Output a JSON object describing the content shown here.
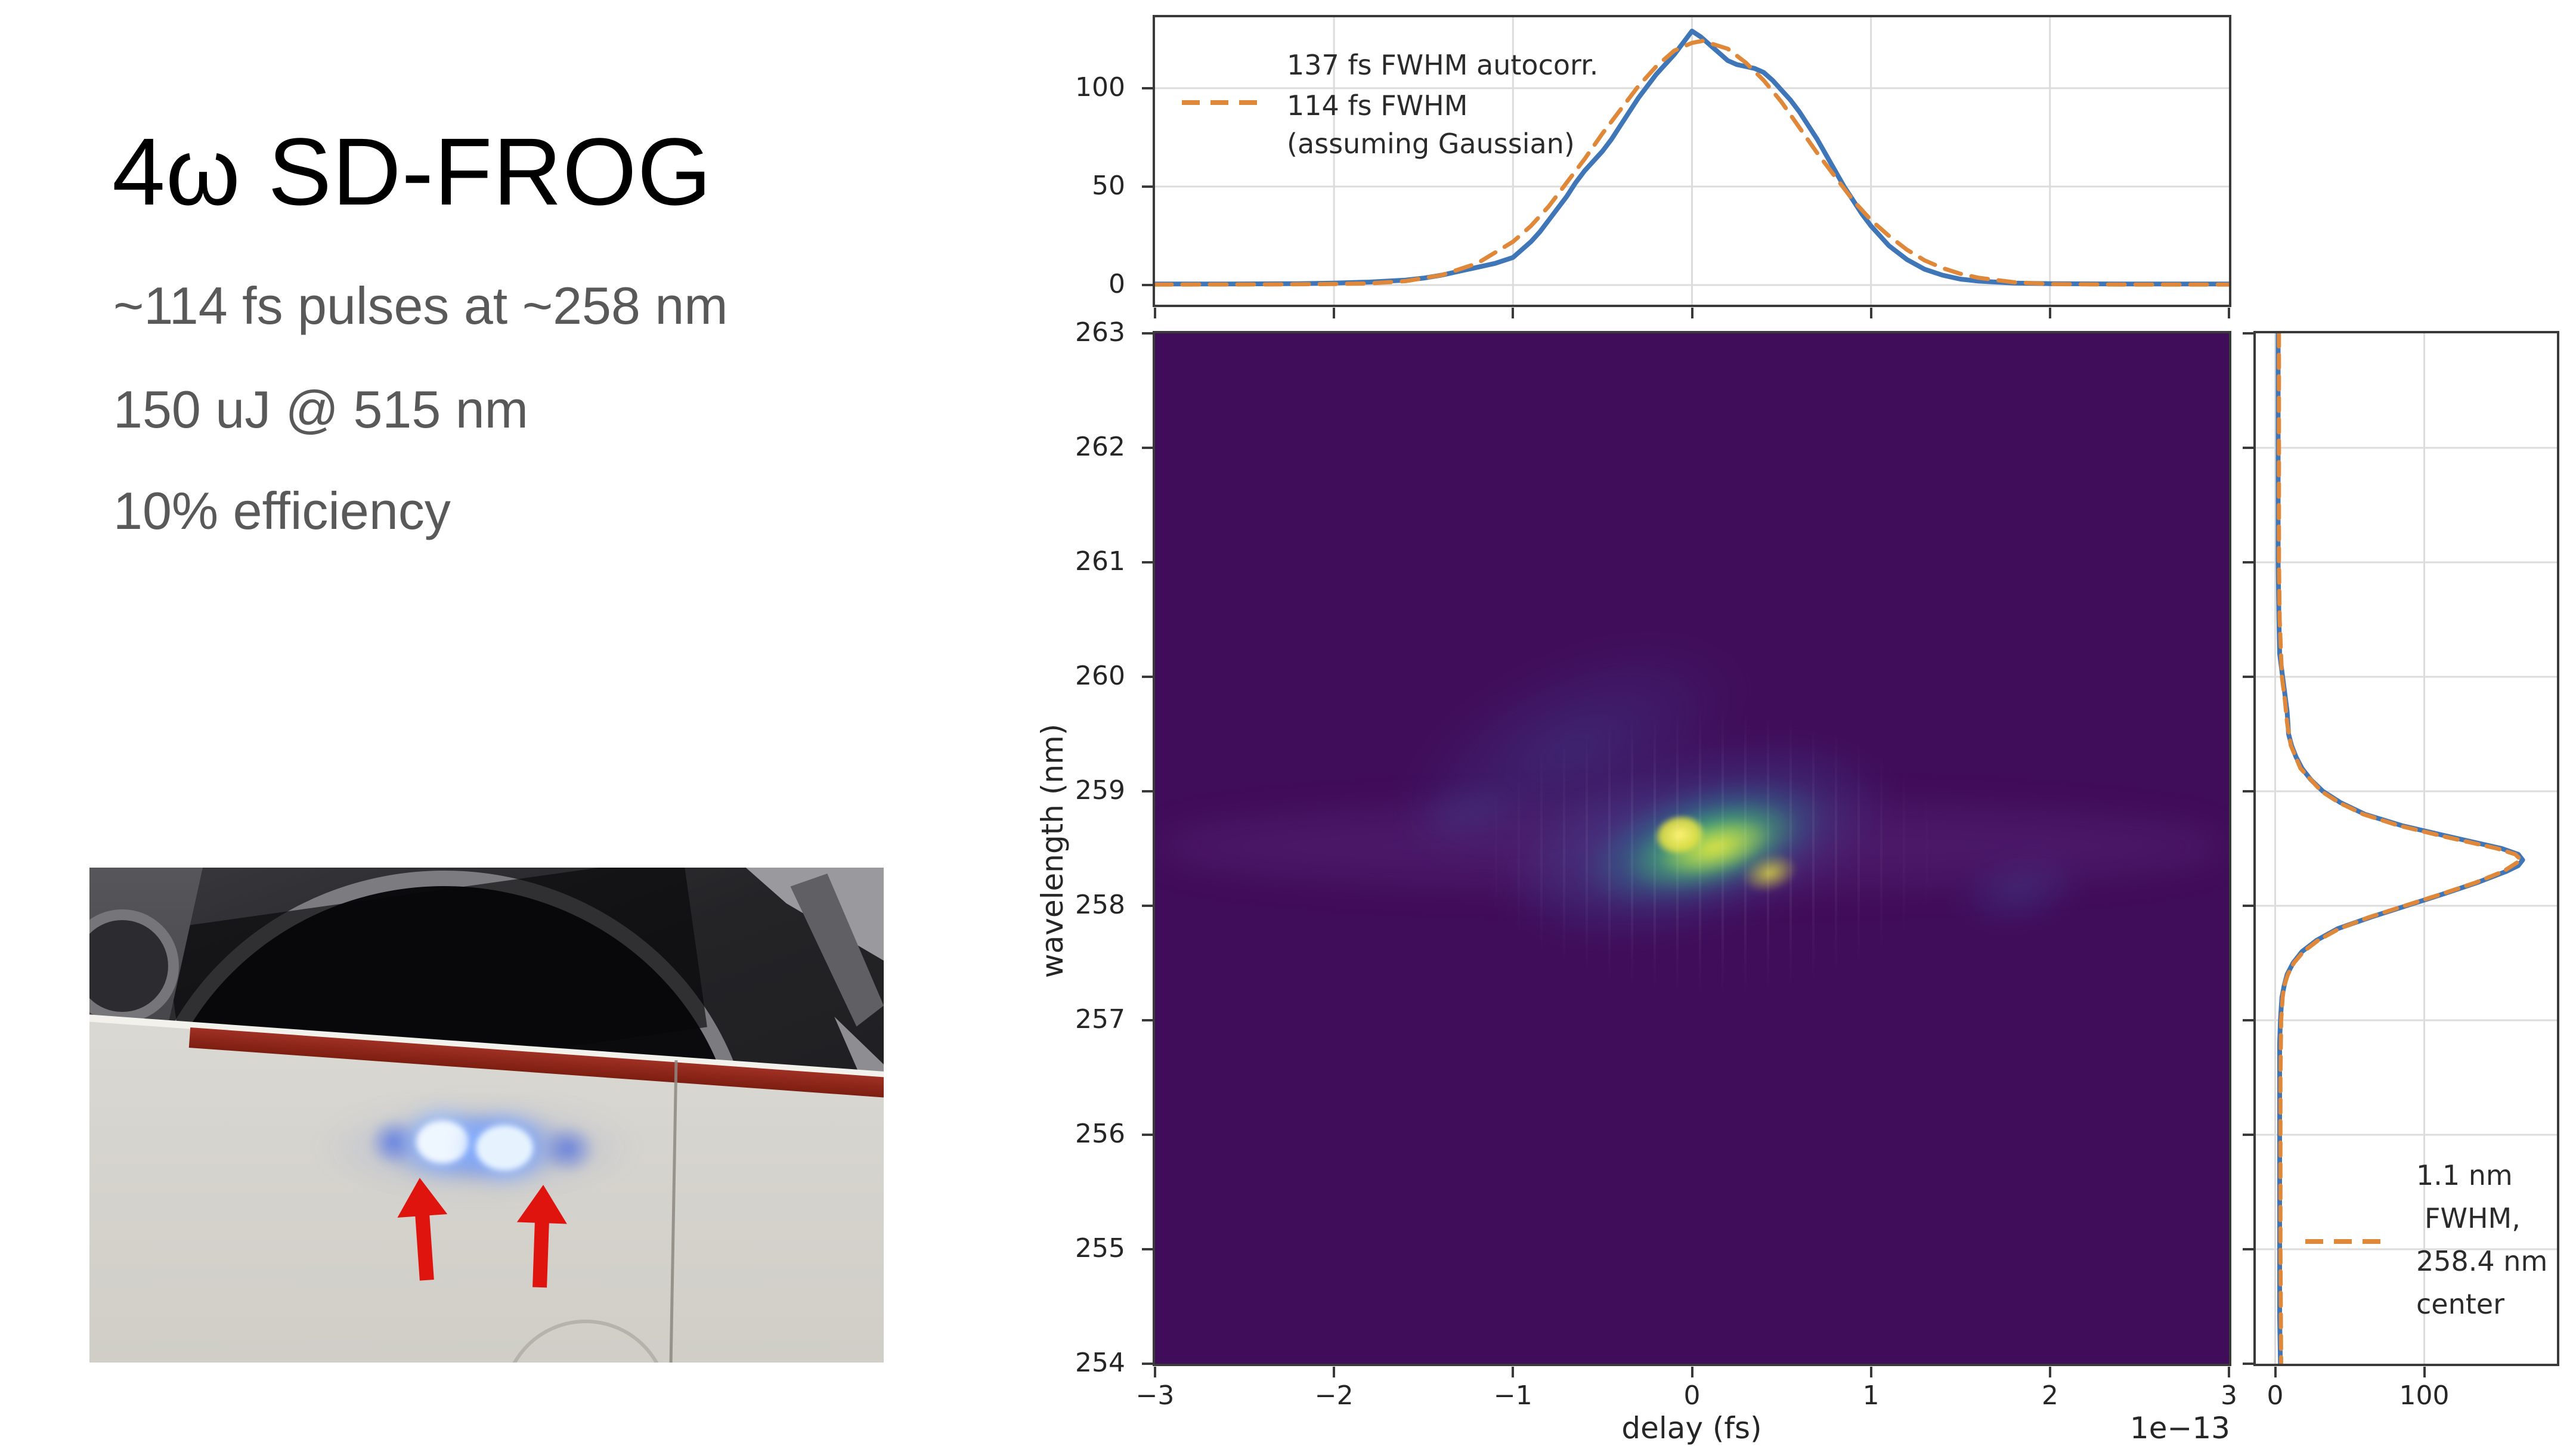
{
  "slide": {
    "title": "4ω SD-FROG",
    "bullets": [
      "~114 fs pulses at ~258 nm",
      "150 uJ @ 515 nm",
      "10% efficiency"
    ],
    "title_color": "#000000",
    "text_color": "#595959"
  },
  "photo": {
    "arrow_color": "#e0140e",
    "glow_color": "#2a5ce6",
    "card_color": "#d6d4ce",
    "red_strip_color": "#8a2418"
  },
  "chart_data": [
    {
      "type": "line",
      "name": "autocorrelation-top-panel",
      "xlim": [
        -3,
        3
      ],
      "ylim": [
        -10,
        136
      ],
      "x_ticks": [
        -3,
        -2,
        -1,
        0,
        1,
        2,
        3
      ],
      "y_ticks": [
        0,
        50,
        100
      ],
      "grid": true,
      "legend": {
        "position": "upper left",
        "entries": [
          {
            "lines": [
              "137 fs FWHM autocorr."
            ],
            "handle": "none",
            "color": "#3f76b8"
          },
          {
            "lines": [
              "114 fs FWHM",
              "(assuming Gaussian)"
            ],
            "handle": "dashed",
            "color": "#e0883a"
          }
        ]
      },
      "fwhm_autocorr_fs": 137,
      "fwhm_pulse_fs": 114,
      "series": [
        {
          "name": "measured autocorrelation",
          "color": "#3f76b8",
          "style": "solid",
          "points": [
            [
              -3,
              0.5
            ],
            [
              -2.6,
              0.5
            ],
            [
              -2.2,
              0.7
            ],
            [
              -2,
              1
            ],
            [
              -1.8,
              1.5
            ],
            [
              -1.6,
              2.5
            ],
            [
              -1.5,
              3.5
            ],
            [
              -1.4,
              5
            ],
            [
              -1.3,
              7
            ],
            [
              -1.2,
              9
            ],
            [
              -1.1,
              11
            ],
            [
              -1,
              14
            ],
            [
              -0.95,
              18
            ],
            [
              -0.9,
              22
            ],
            [
              -0.85,
              27
            ],
            [
              -0.8,
              33
            ],
            [
              -0.75,
              39
            ],
            [
              -0.7,
              45
            ],
            [
              -0.65,
              52
            ],
            [
              -0.6,
              58
            ],
            [
              -0.55,
              63
            ],
            [
              -0.5,
              68
            ],
            [
              -0.45,
              74
            ],
            [
              -0.4,
              81
            ],
            [
              -0.35,
              88
            ],
            [
              -0.3,
              95
            ],
            [
              -0.25,
              101
            ],
            [
              -0.2,
              107
            ],
            [
              -0.15,
              112
            ],
            [
              -0.1,
              117
            ],
            [
              -0.05,
              123
            ],
            [
              0,
              129
            ],
            [
              0.05,
              126
            ],
            [
              0.1,
              122
            ],
            [
              0.15,
              118
            ],
            [
              0.2,
              114
            ],
            [
              0.25,
              112
            ],
            [
              0.3,
              111
            ],
            [
              0.35,
              110
            ],
            [
              0.4,
              108
            ],
            [
              0.45,
              104
            ],
            [
              0.5,
              99
            ],
            [
              0.55,
              94
            ],
            [
              0.6,
              88
            ],
            [
              0.65,
              81
            ],
            [
              0.7,
              74
            ],
            [
              0.75,
              66
            ],
            [
              0.8,
              58
            ],
            [
              0.85,
              50
            ],
            [
              0.9,
              43
            ],
            [
              0.95,
              36
            ],
            [
              1,
              30
            ],
            [
              1.1,
              20
            ],
            [
              1.2,
              13
            ],
            [
              1.3,
              8
            ],
            [
              1.4,
              5
            ],
            [
              1.5,
              3
            ],
            [
              1.6,
              2
            ],
            [
              1.8,
              1
            ],
            [
              2,
              0.7
            ],
            [
              2.4,
              0.5
            ],
            [
              3,
              0.5
            ]
          ]
        },
        {
          "name": "gaussian fit",
          "color": "#e0883a",
          "style": "dashed",
          "points": [
            [
              -3,
              0.2
            ],
            [
              -2.4,
              0.3
            ],
            [
              -2,
              0.5
            ],
            [
              -1.8,
              0.8
            ],
            [
              -1.6,
              2
            ],
            [
              -1.4,
              5
            ],
            [
              -1.2,
              11
            ],
            [
              -1,
              22
            ],
            [
              -0.9,
              30
            ],
            [
              -0.8,
              40
            ],
            [
              -0.7,
              52
            ],
            [
              -0.6,
              64
            ],
            [
              -0.5,
              77
            ],
            [
              -0.4,
              89
            ],
            [
              -0.3,
              101
            ],
            [
              -0.2,
              111
            ],
            [
              -0.1,
              119
            ],
            [
              0,
              123
            ],
            [
              0.06,
              124
            ],
            [
              0.2,
              120
            ],
            [
              0.3,
              113
            ],
            [
              0.4,
              104
            ],
            [
              0.5,
              93
            ],
            [
              0.6,
              80
            ],
            [
              0.7,
              67
            ],
            [
              0.8,
              55
            ],
            [
              0.9,
              43
            ],
            [
              1,
              33
            ],
            [
              1.1,
              25
            ],
            [
              1.2,
              18
            ],
            [
              1.3,
              12.5
            ],
            [
              1.4,
              8.6
            ],
            [
              1.5,
              5.7
            ],
            [
              1.6,
              3.7
            ],
            [
              1.8,
              1.4
            ],
            [
              2,
              0.5
            ],
            [
              2.4,
              0.2
            ],
            [
              3,
              0.2
            ]
          ]
        }
      ]
    },
    {
      "type": "heatmap",
      "name": "frog-trace",
      "colormap": "viridis",
      "background": "#400d5a",
      "xlabel": "delay (fs)",
      "x_offset_label": "1e−13",
      "ylabel": "wavelength (nm)",
      "xlim": [
        -3,
        3
      ],
      "ylim": [
        254,
        263
      ],
      "x_ticks": [
        -3,
        -2,
        -1,
        0,
        1,
        2,
        3
      ],
      "y_ticks": [
        263,
        262,
        261,
        260,
        259,
        258,
        257,
        256,
        255,
        254
      ],
      "blob": {
        "delay_center": 0.05,
        "wavelength_center_nm": 258.5,
        "delay_extent": [
          -1.1,
          1.3
        ],
        "wavelength_extent_nm": [
          257.2,
          259.8
        ],
        "tilt": "negative (upper-left to lower-right)"
      }
    },
    {
      "type": "line",
      "name": "spectrum-right-panel",
      "orientation": "horizontal",
      "value_lim": [
        -13,
        189
      ],
      "value_ticks": [
        0,
        100
      ],
      "wavelength_lim": [
        254,
        263
      ],
      "grid": true,
      "fwhm_nm": 1.1,
      "center_nm": 258.4,
      "legend": {
        "lines": [
          "1.1 nm",
          "FWHM,",
          "258.4 nm",
          "center"
        ],
        "handle": "dashed",
        "color": "#e0883a"
      },
      "series": [
        {
          "name": "measured spectrum",
          "color": "#3f76b8",
          "style": "solid",
          "points": [
            [
              263,
              2
            ],
            [
              262,
              2
            ],
            [
              261,
              2
            ],
            [
              260.5,
              2.5
            ],
            [
              260.2,
              3
            ],
            [
              260,
              5
            ],
            [
              259.9,
              6
            ],
            [
              259.8,
              7
            ],
            [
              259.7,
              8
            ],
            [
              259.6,
              8.5
            ],
            [
              259.5,
              9
            ],
            [
              259.4,
              11
            ],
            [
              259.3,
              14
            ],
            [
              259.2,
              18
            ],
            [
              259.1,
              24
            ],
            [
              259,
              32
            ],
            [
              258.9,
              44
            ],
            [
              258.8,
              60
            ],
            [
              258.7,
              85
            ],
            [
              258.6,
              118
            ],
            [
              258.55,
              135
            ],
            [
              258.5,
              152
            ],
            [
              258.45,
              163
            ],
            [
              258.4,
              166
            ],
            [
              258.35,
              163
            ],
            [
              258.3,
              155
            ],
            [
              258.2,
              135
            ],
            [
              258.1,
              112
            ],
            [
              258,
              88
            ],
            [
              257.9,
              64
            ],
            [
              257.8,
              42
            ],
            [
              257.7,
              28
            ],
            [
              257.6,
              18
            ],
            [
              257.5,
              12
            ],
            [
              257.4,
              8
            ],
            [
              257.3,
              6
            ],
            [
              257.2,
              4.5
            ],
            [
              257.1,
              4
            ],
            [
              257,
              3.5
            ],
            [
              256.8,
              3
            ],
            [
              256.4,
              3
            ],
            [
              256,
              3
            ],
            [
              255,
              3
            ],
            [
              254.4,
              3
            ],
            [
              254,
              3.5
            ]
          ]
        },
        {
          "name": "gaussian fit",
          "color": "#e0883a",
          "style": "dashed",
          "points": [
            [
              263,
              2.5
            ],
            [
              262,
              2.5
            ],
            [
              261,
              2.5
            ],
            [
              260.5,
              3
            ],
            [
              260,
              4.5
            ],
            [
              259.8,
              6.5
            ],
            [
              259.6,
              8
            ],
            [
              259.4,
              10.5
            ],
            [
              259.2,
              17
            ],
            [
              259,
              31
            ],
            [
              258.9,
              43
            ],
            [
              258.8,
              59
            ],
            [
              258.7,
              83
            ],
            [
              258.6,
              115
            ],
            [
              258.5,
              149
            ],
            [
              258.45,
              161
            ],
            [
              258.4,
              165
            ],
            [
              258.3,
              153
            ],
            [
              258.2,
              134
            ],
            [
              258.1,
              111
            ],
            [
              258,
              87
            ],
            [
              257.9,
              63
            ],
            [
              257.8,
              43
            ],
            [
              257.7,
              29
            ],
            [
              257.6,
              19
            ],
            [
              257.5,
              12.5
            ],
            [
              257.4,
              8.5
            ],
            [
              257.3,
              6
            ],
            [
              257.2,
              5
            ],
            [
              257,
              4
            ],
            [
              256.5,
              3.5
            ],
            [
              256,
              3.5
            ],
            [
              255,
              3.5
            ],
            [
              254,
              4
            ]
          ]
        }
      ]
    }
  ]
}
